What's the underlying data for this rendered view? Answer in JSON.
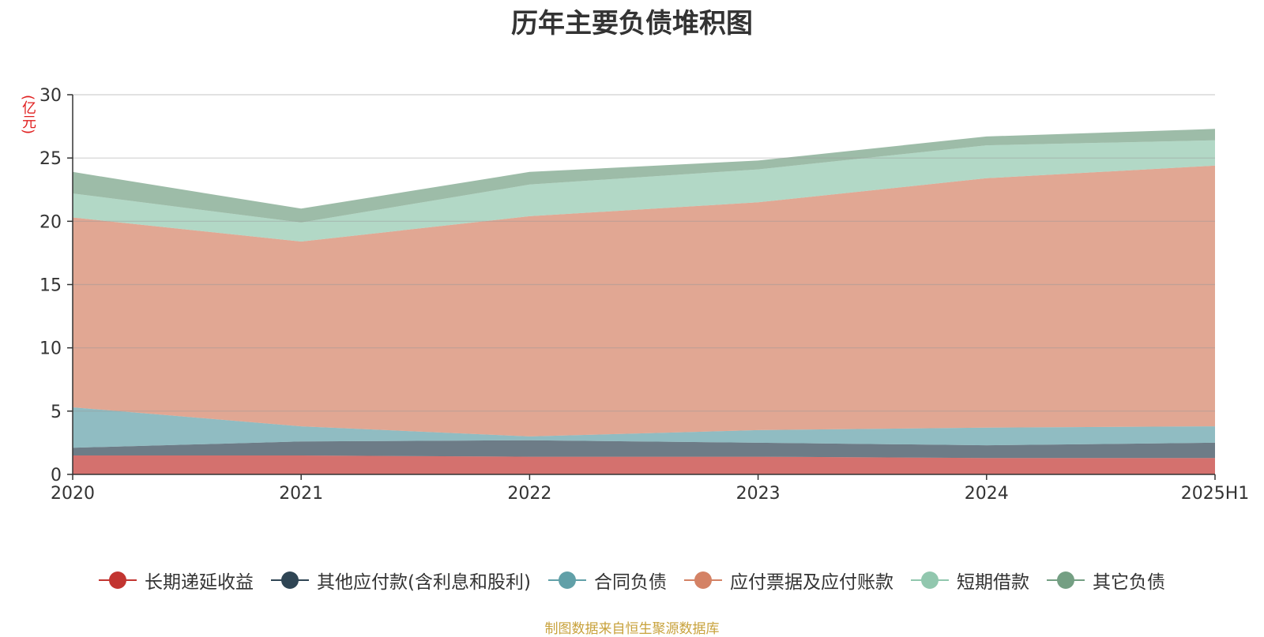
{
  "chart_data": {
    "type": "area",
    "stacked": true,
    "title": "历年主要负债堆积图",
    "ylabel": "(亿元)",
    "source": "制图数据来自恒生聚源数据库",
    "x": [
      "2020",
      "2021",
      "2022",
      "2023",
      "2024",
      "2025H1"
    ],
    "ylim": [
      0,
      30
    ],
    "yticks": [
      "0",
      "5",
      "10",
      "15",
      "20",
      "25",
      "30"
    ],
    "grid": true,
    "legend_position": "bottom",
    "series": [
      {
        "name": "长期递延收益",
        "color": "#c23531",
        "values": [
          1.5,
          1.5,
          1.4,
          1.4,
          1.3,
          1.3
        ]
      },
      {
        "name": "其他应付款(含利息和股利)",
        "color": "#2f4554",
        "values": [
          0.6,
          1.1,
          1.3,
          1.1,
          1.0,
          1.2
        ]
      },
      {
        "name": "合同负债",
        "color": "#61a0a8",
        "values": [
          3.2,
          1.2,
          0.3,
          1.0,
          1.4,
          1.3
        ]
      },
      {
        "name": "应付票据及应付账款",
        "color": "#d48265",
        "values": [
          15.0,
          14.6,
          17.4,
          18.0,
          19.7,
          20.6
        ]
      },
      {
        "name": "短期借款",
        "color": "#91c7ae",
        "values": [
          1.9,
          1.5,
          2.5,
          2.6,
          2.6,
          2.0
        ]
      },
      {
        "name": "其它负债",
        "color": "#749f83",
        "values": [
          1.7,
          1.1,
          1.0,
          0.7,
          0.7,
          0.9
        ]
      }
    ]
  }
}
